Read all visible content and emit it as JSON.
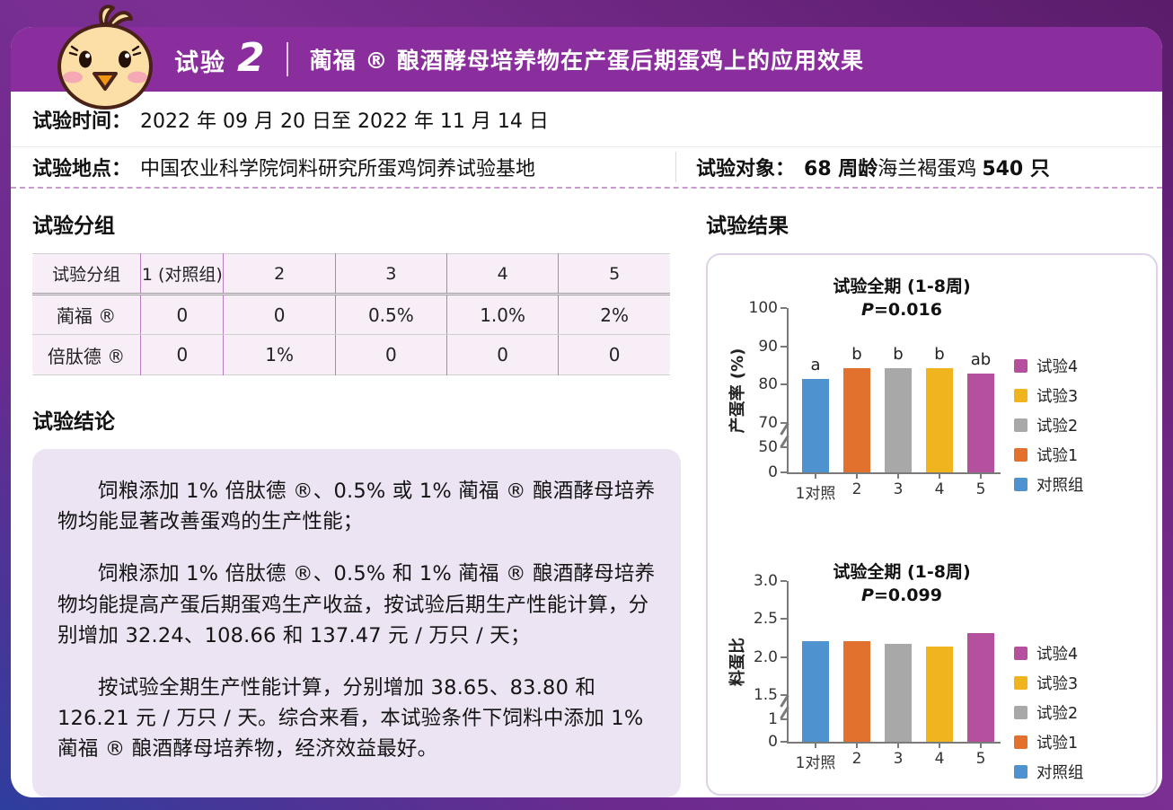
{
  "banner": {
    "badge_label": "试验",
    "badge_number": "2",
    "title": "蔺福 ® 酿酒酵母培养物在产蛋后期蛋鸡上的应用效果"
  },
  "info": {
    "time_label": "试验时间：",
    "time_value": "2022 年 09 月 20 日至 2022 年 11 月 14 日",
    "location_label": "试验地点：",
    "location_value": "中国农业科学院饲料研究所蛋鸡饲养试验基地",
    "subject_label": "试验对象：",
    "subject_bold1": "68 周龄",
    "subject_mid": "海兰褐蛋鸡",
    "subject_bold2": "540 只"
  },
  "groups": {
    "heading": "试验分组",
    "table": {
      "header": [
        "试验分组",
        "1 (对照组)",
        "2",
        "3",
        "4",
        "5"
      ],
      "rows": [
        {
          "label": "蔺福 ®",
          "values": [
            "0",
            "0",
            "0.5%",
            "1.0%",
            "2%"
          ]
        },
        {
          "label": "倍肽德 ®",
          "values": [
            "0",
            "1%",
            "0",
            "0",
            "0"
          ]
        }
      ]
    }
  },
  "conclusion": {
    "heading": "试验结论",
    "paragraphs": [
      "饲粮添加 1% 倍肽德 ®、0.5% 或 1% 蔺福 ® 酿酒酵母培养物均能显著改善蛋鸡的生产性能；",
      "饲粮添加 1% 倍肽德 ®、0.5% 和 1% 蔺福 ® 酿酒酵母培养物均能提高产蛋后期蛋鸡生产收益，按试验后期生产性能计算，分别增加 32.24、108.66 和 137.47 元 / 万只 / 天；",
      "按试验全期生产性能计算，分别增加 38.65、83.80 和 126.21 元 / 万只 / 天。综合来看，本试验条件下饲料中添加 1% 蔺福 ® 酿酒酵母培养物，经济效益最好。"
    ]
  },
  "results": {
    "heading": "试验结果"
  },
  "colors": {
    "banner_purple": "#8b2e9d",
    "frame_purple": "#5a1c6b",
    "frame_blue": "#2e3e9e",
    "panel_lavender": "#ece4f2",
    "table_pink": "#f8eef7",
    "control_blue": "#4e92cf",
    "trial1_orange": "#e2712d",
    "trial2_gray": "#a8a8a8",
    "trial3_yellow": "#f0b41e",
    "trial4_magenta": "#b4509e"
  },
  "chart_data": [
    {
      "type": "bar",
      "title": "试验全期 (1-8周)",
      "subtitle": "P=0.016",
      "ylabel": "产蛋率 (%)",
      "xlabel": "",
      "categories": [
        "1对照",
        "2",
        "3",
        "4",
        "5"
      ],
      "values": [
        81.6,
        84.3,
        84.3,
        84.3,
        83.0
      ],
      "bar_labels": [
        "a",
        "b",
        "b",
        "b",
        "ab"
      ],
      "bar_colors": [
        "#4e92cf",
        "#e2712d",
        "#a8a8a8",
        "#f0b41e",
        "#b4509e"
      ],
      "yticks": [
        [
          0,
          "0"
        ],
        [
          50,
          "50"
        ],
        [
          70,
          "70"
        ],
        [
          80,
          "80"
        ],
        [
          90,
          "90"
        ],
        [
          100,
          "100"
        ]
      ],
      "ylim": [
        0,
        100
      ],
      "axis_break": "between 0–50 and 50–70 (compressed scale)",
      "grid": false,
      "legend_position": "right",
      "legend": [
        {
          "label": "试验4",
          "color": "#b4509e"
        },
        {
          "label": "试验3",
          "color": "#f0b41e"
        },
        {
          "label": "试验2",
          "color": "#a8a8a8"
        },
        {
          "label": "试验1",
          "color": "#e2712d"
        },
        {
          "label": "对照组",
          "color": "#4e92cf"
        }
      ]
    },
    {
      "type": "bar",
      "title": "试验全期 (1-8周)",
      "subtitle": "P=0.099",
      "ylabel": "料蛋比",
      "xlabel": "",
      "categories": [
        "1对照",
        "2",
        "3",
        "4",
        "5"
      ],
      "values": [
        2.21,
        2.21,
        2.17,
        2.14,
        2.32
      ],
      "bar_labels": [
        "",
        "",
        "",
        "",
        ""
      ],
      "bar_colors": [
        "#4e92cf",
        "#e2712d",
        "#a8a8a8",
        "#f0b41e",
        "#b4509e"
      ],
      "yticks": [
        [
          0,
          "0"
        ],
        [
          1,
          "1"
        ],
        [
          1.5,
          "1.5"
        ],
        [
          2,
          "2.0"
        ],
        [
          2.5,
          "2.5"
        ],
        [
          3,
          "3.0"
        ]
      ],
      "ylim": [
        0,
        3
      ],
      "axis_break": "between 0–1 and 1–1.5 (compressed scale)",
      "grid": false,
      "legend_position": "right",
      "legend": [
        {
          "label": "试验4",
          "color": "#b4509e"
        },
        {
          "label": "试验3",
          "color": "#f0b41e"
        },
        {
          "label": "试验2",
          "color": "#a8a8a8"
        },
        {
          "label": "试验1",
          "color": "#e2712d"
        },
        {
          "label": "对照组",
          "color": "#4e92cf"
        }
      ]
    }
  ]
}
